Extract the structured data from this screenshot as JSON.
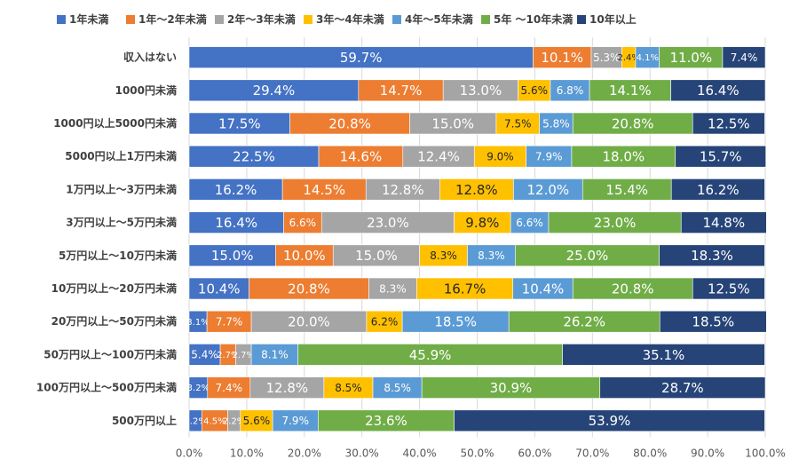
{
  "chart_data": {
    "type": "bar",
    "orientation": "horizontal",
    "stacked": "percent",
    "categories": [
      "収入はない",
      "1000円未満",
      "1000円以上5000円未満",
      "5000円以上1万円未満",
      "1万円以上～3万円未満",
      "3万円以上～5万円未満",
      "5万円以上～10万円未満",
      "10万円以上～20万円未満",
      "20万円以上～50万円未満",
      "50万円以上～100万円未満",
      "100万円以上～500万円未満",
      "500万円以上"
    ],
    "series": [
      {
        "name": "1年未満",
        "color": "#4472C4",
        "values": [
          59.7,
          29.4,
          17.5,
          22.5,
          16.2,
          16.4,
          15.0,
          10.4,
          3.1,
          5.4,
          3.2,
          2.2
        ]
      },
      {
        "name": "1年～2年未満",
        "color": "#ED7D31",
        "values": [
          10.1,
          14.7,
          20.8,
          14.6,
          14.5,
          6.6,
          10.0,
          20.8,
          7.7,
          2.7,
          7.4,
          4.5
        ]
      },
      {
        "name": "2年～3年未満",
        "color": "#A5A5A5",
        "values": [
          5.3,
          13.0,
          15.0,
          12.4,
          12.8,
          23.0,
          15.0,
          8.3,
          20.0,
          2.7,
          12.8,
          2.2
        ]
      },
      {
        "name": "3年～4年未満",
        "color": "#FFC000",
        "values": [
          2.4,
          5.6,
          7.5,
          9.0,
          12.8,
          9.8,
          8.3,
          16.7,
          6.2,
          0.0,
          8.5,
          5.6
        ]
      },
      {
        "name": "4年～5年未満",
        "color": "#5B9BD5",
        "values": [
          4.1,
          6.8,
          5.8,
          7.9,
          12.0,
          6.6,
          8.3,
          10.4,
          18.5,
          8.1,
          8.5,
          7.9
        ]
      },
      {
        "name": "5年 ～10年未満",
        "color": "#70AD47",
        "values": [
          11.0,
          14.1,
          20.8,
          18.0,
          15.4,
          23.0,
          25.0,
          20.8,
          26.2,
          45.9,
          30.9,
          23.6
        ]
      },
      {
        "name": "10年以上",
        "color": "#264478",
        "values": [
          7.4,
          16.4,
          12.5,
          15.7,
          16.2,
          14.8,
          18.3,
          12.5,
          18.5,
          35.1,
          28.7,
          53.9
        ]
      }
    ],
    "xlim": [
      0,
      100
    ],
    "x_ticks": [
      "0.0%",
      "10.0%",
      "20.0%",
      "30.0%",
      "40.0%",
      "50.0%",
      "60.0%",
      "70.0%",
      "80.0%",
      "90.0%",
      "100.0%"
    ],
    "legend_position": "top",
    "grid": true,
    "data_labels": "percent, 1 decimal"
  }
}
